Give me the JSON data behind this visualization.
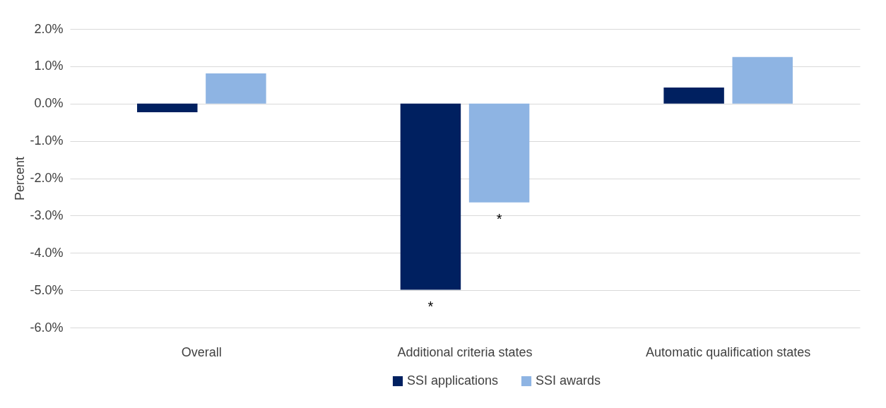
{
  "chart_data": {
    "type": "bar",
    "ylabel": "Percent",
    "categories": [
      "Overall",
      "Additional criteria states",
      "Automatic qualification states"
    ],
    "series": [
      {
        "name": "SSI applications",
        "color": "#002060",
        "values": [
          -0.23,
          -4.99,
          0.43
        ]
      },
      {
        "name": "SSI awards",
        "color": "#8eb4e3",
        "values": [
          0.81,
          -2.65,
          1.25
        ]
      }
    ],
    "ylim": [
      -6,
      2
    ],
    "yticks": [
      {
        "value": 2,
        "label": "2.0%"
      },
      {
        "value": 1,
        "label": "1.0%"
      },
      {
        "value": 0,
        "label": "0.0%"
      },
      {
        "value": -1,
        "label": "-1.0%"
      },
      {
        "value": -2,
        "label": "-2.0%"
      },
      {
        "value": -3,
        "label": "-3.0%"
      },
      {
        "value": -4,
        "label": "-4.0%"
      },
      {
        "value": -5,
        "label": "-5.0%"
      },
      {
        "value": -6,
        "label": "-6.0%"
      }
    ],
    "annotations": [
      "*",
      "*"
    ],
    "grid": "y",
    "legend": "bottom"
  }
}
